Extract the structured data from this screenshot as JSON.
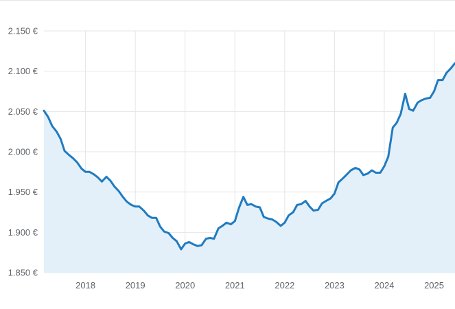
{
  "chart_data": {
    "type": "area",
    "title": "",
    "xlabel": "",
    "ylabel": "",
    "ylim": [
      1850,
      2150
    ],
    "y_ticks": [
      1850,
      1900,
      1950,
      2000,
      2050,
      2100,
      2150
    ],
    "y_tick_labels": [
      "1.850 €",
      "1.900 €",
      "1.950 €",
      "2.000 €",
      "2.050 €",
      "2.100 €",
      "2.150 €"
    ],
    "x_ticks": [
      2018,
      2019,
      2020,
      2021,
      2022,
      2023,
      2024,
      2025
    ],
    "x_tick_labels": [
      "2018",
      "2019",
      "2020",
      "2021",
      "2022",
      "2023",
      "2024",
      "2025"
    ],
    "xlim": [
      2017.165,
      2025.42
    ],
    "grid": true,
    "line_color": "#1f7bc1",
    "fill_color": "#e3f0f9",
    "grid_color": "#e2e5e9",
    "series": [
      {
        "x": [
          2017.165,
          2017.25,
          2017.33,
          2017.42,
          2017.5,
          2017.58,
          2017.67,
          2017.75,
          2017.83,
          2017.92,
          2018.0,
          2018.08,
          2018.17,
          2018.25,
          2018.33,
          2018.42,
          2018.5,
          2018.58,
          2018.67,
          2018.75,
          2018.83,
          2018.92,
          2019.0,
          2019.08,
          2019.17,
          2019.25,
          2019.33,
          2019.42,
          2019.5,
          2019.58,
          2019.67,
          2019.75,
          2019.83,
          2019.92,
          2020.0,
          2020.08,
          2020.17,
          2020.25,
          2020.33,
          2020.42,
          2020.5,
          2020.58,
          2020.67,
          2020.75,
          2020.83,
          2020.92,
          2021.0,
          2021.08,
          2021.17,
          2021.25,
          2021.33,
          2021.42,
          2021.5,
          2021.58,
          2021.67,
          2021.75,
          2021.83,
          2021.92,
          2022.0,
          2022.08,
          2022.17,
          2022.25,
          2022.33,
          2022.42,
          2022.5,
          2022.58,
          2022.67,
          2022.75,
          2022.83,
          2022.92,
          2023.0,
          2023.08,
          2023.17,
          2023.25,
          2023.33,
          2023.42,
          2023.5,
          2023.58,
          2023.67,
          2023.75,
          2023.83,
          2023.92,
          2024.0,
          2024.08,
          2024.17,
          2024.25,
          2024.33,
          2024.42,
          2024.5,
          2024.58,
          2024.67,
          2024.75,
          2024.83,
          2024.92,
          2025.0,
          2025.08,
          2025.17,
          2025.25,
          2025.33,
          2025.42
        ],
        "values": [
          2051,
          2043,
          2032,
          2025,
          2016,
          2001,
          1996,
          1992,
          1987,
          1979,
          1975,
          1975,
          1972,
          1968,
          1963,
          1969,
          1964,
          1957,
          1951,
          1944,
          1938,
          1934,
          1932,
          1932,
          1927,
          1921,
          1918,
          1918,
          1907,
          1901,
          1899,
          1893,
          1889,
          1879,
          1886,
          1888,
          1885,
          1883,
          1884,
          1892,
          1893,
          1892,
          1905,
          1908,
          1912,
          1910,
          1914,
          1930,
          1944,
          1934,
          1935,
          1932,
          1931,
          1919,
          1917,
          1916,
          1913,
          1908,
          1912,
          1921,
          1925,
          1934,
          1935,
          1939,
          1932,
          1927,
          1928,
          1936,
          1939,
          1942,
          1948,
          1962,
          1967,
          1972,
          1977,
          1980,
          1978,
          1971,
          1973,
          1977,
          1974,
          1974,
          1982,
          1994,
          2030,
          2036,
          2047,
          2072,
          2053,
          2051,
          2061,
          2064,
          2066,
          2067,
          2075,
          2089,
          2089,
          2098,
          2103,
          2110
        ]
      }
    ]
  }
}
